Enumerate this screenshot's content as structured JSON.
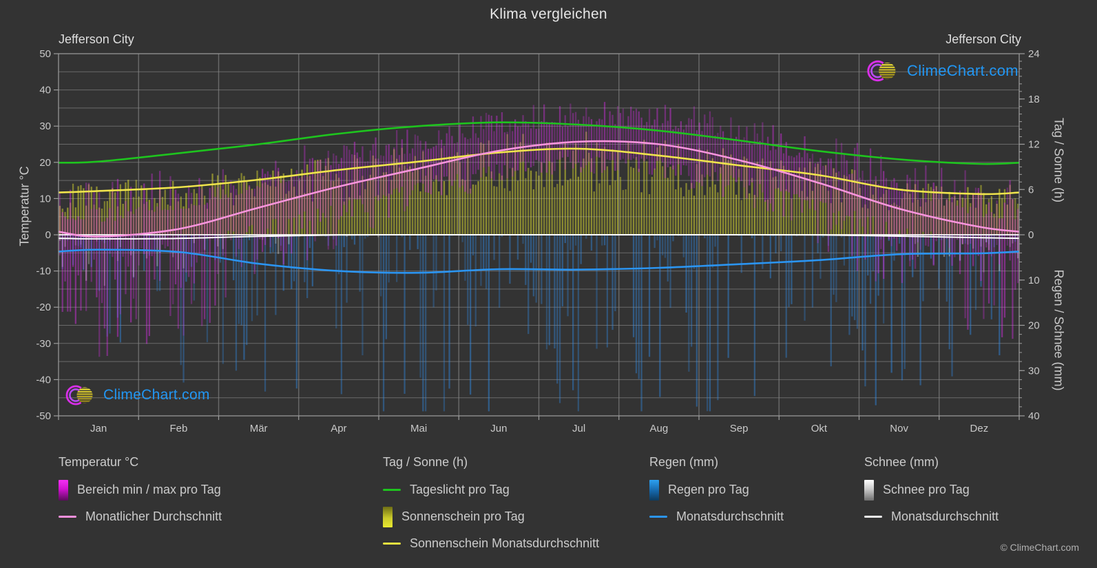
{
  "title": "Klima vergleichen",
  "station_left": "Jefferson City",
  "station_right": "Jefferson City",
  "watermark": "ClimeChart.com",
  "copyright": "© ClimeChart.com",
  "axes": {
    "temp_label": "Temperatur °C",
    "sun_label": "Tag / Sonne (h)",
    "rain_label": "Regen / Schnee (mm)",
    "temp_ticks": [
      50,
      40,
      30,
      20,
      10,
      0,
      -10,
      -20,
      -30,
      -40,
      -50
    ],
    "sun_ticks": [
      24,
      18,
      12,
      6
    ],
    "rain_ticks": [
      0,
      10,
      20,
      30,
      40
    ]
  },
  "legend": {
    "temp": {
      "title": "Temperatur °C",
      "range": "Bereich min / max pro Tag",
      "avg": "Monatlicher Durchschnitt"
    },
    "sun": {
      "title": "Tag / Sonne (h)",
      "daylight": "Tageslicht pro Tag",
      "daily": "Sonnenschein pro Tag",
      "avg": "Sonnenschein Monatsdurchschnitt"
    },
    "rain": {
      "title": "Regen (mm)",
      "daily": "Regen pro Tag",
      "avg": "Monatsdurchschnitt"
    },
    "snow": {
      "title": "Schnee (mm)",
      "daily": "Schnee pro Tag",
      "avg": "Monatsdurchschnitt"
    }
  },
  "colors": {
    "background": "#333333",
    "grid": "#555555",
    "axis": "#9e9e9e",
    "text": "#c9c9c9",
    "temp_range_bar": "#cb2fd9",
    "temp_avg_line": "#f795dd",
    "daylight_line": "#1ec41e",
    "sunshine_bar": "#c9c930",
    "sunshine_avg_line": "#efe44c",
    "rain_bar": "#3172b4",
    "rain_avg_line": "#2b95f2",
    "snow_bar": "#d9d9d9",
    "snow_avg_line": "#ffffff",
    "zero_line": "#ffffff",
    "brand_blue": "#2196f3",
    "logo_magenta": "#d92ee8",
    "logo_yellow": "#e8d822"
  },
  "chart_data": {
    "type": "area",
    "title": "Klima vergleichen — Jefferson City",
    "months": [
      "Jan",
      "Feb",
      "Mär",
      "Apr",
      "Mai",
      "Jun",
      "Jul",
      "Aug",
      "Sep",
      "Okt",
      "Nov",
      "Dez"
    ],
    "ylim_temp_c": [
      -50,
      50
    ],
    "ylim_sun_h": [
      0,
      24
    ],
    "ylim_rain_mm": [
      0,
      40
    ],
    "grid": true,
    "legend_position": "bottom",
    "series": [
      {
        "name": "Tageslicht pro Tag (h)",
        "axis": "sun",
        "values": [
          9.7,
          10.8,
          12.0,
          13.4,
          14.4,
          14.9,
          14.6,
          13.8,
          12.5,
          11.1,
          10.0,
          9.4
        ]
      },
      {
        "name": "Sonnenschein Monatsdurchschnitt (h)",
        "axis": "sun",
        "values": [
          5.8,
          6.3,
          7.3,
          8.6,
          9.7,
          10.9,
          11.4,
          10.5,
          9.2,
          7.9,
          6.0,
          5.4
        ]
      },
      {
        "name": "Monatlicher Durchschnitt Temperatur (°C)",
        "axis": "temp",
        "values": [
          -0.5,
          1.6,
          7.5,
          13.3,
          18.3,
          23.2,
          25.7,
          25.0,
          20.6,
          14.3,
          7.2,
          2.2
        ]
      },
      {
        "name": "Tagesmaximum Monatsmittel (°C)",
        "axis": "temp",
        "values": [
          4.5,
          7.3,
          13.9,
          19.5,
          24.2,
          29.0,
          31.4,
          31.0,
          27.0,
          20.6,
          13.0,
          6.2
        ]
      },
      {
        "name": "Tagesminimum Monatsmittel (°C)",
        "axis": "temp",
        "values": [
          -5.6,
          -3.5,
          2.1,
          7.7,
          13.2,
          18.4,
          20.6,
          19.6,
          14.7,
          8.2,
          2.1,
          -3.4
        ]
      },
      {
        "name": "Regen Monatsdurchschnitt (mm/Tag)",
        "axis": "rain",
        "values": [
          3.3,
          3.8,
          6.4,
          8.0,
          8.4,
          7.6,
          7.7,
          7.3,
          6.5,
          5.6,
          4.3,
          4.1
        ]
      },
      {
        "name": "Schnee Monatsdurchschnitt (mm/Tag)",
        "axis": "rain",
        "values": [
          0.9,
          0.8,
          0.35,
          0.05,
          0,
          0,
          0,
          0,
          0,
          0.05,
          0.3,
          0.65
        ]
      }
    ]
  }
}
